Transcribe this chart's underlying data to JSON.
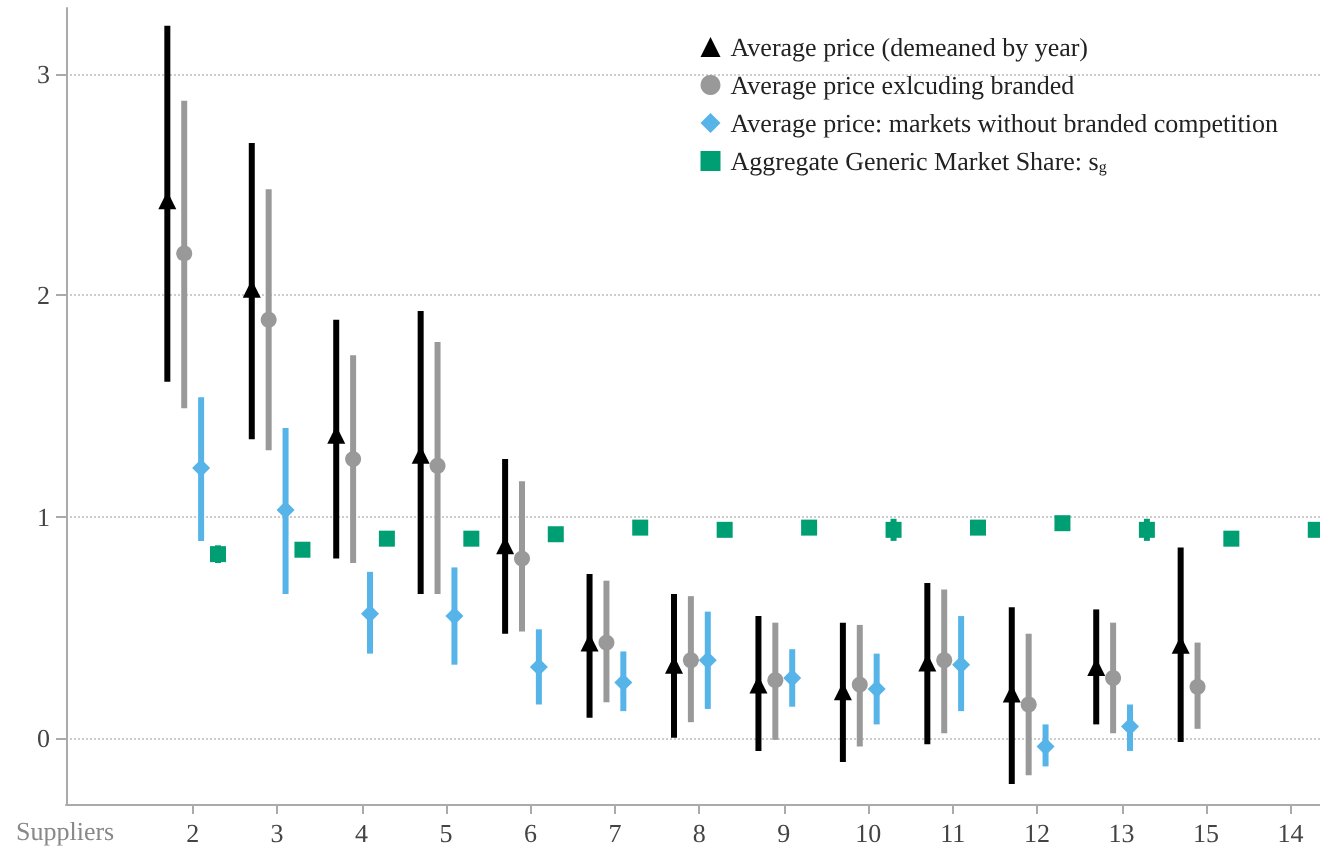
{
  "chart_data": {
    "type": "scatter",
    "xlabel": "Suppliers",
    "categories": [
      "2",
      "3",
      "4",
      "5",
      "6",
      "7",
      "8",
      "9",
      "10",
      "11",
      "12",
      "13",
      "15",
      "14"
    ],
    "ylim": [
      -0.3,
      3.3
    ],
    "yticks": [
      0,
      1,
      2,
      3
    ],
    "grid": "y",
    "legend": "top right",
    "series": [
      {
        "name": "Average price (demeaned by year)",
        "color": "#000000",
        "marker": "triangle",
        "x": [
          "2",
          "3",
          "4",
          "5",
          "6",
          "7",
          "8",
          "9",
          "10",
          "11",
          "12",
          "13",
          "15"
        ],
        "values": [
          2.43,
          2.03,
          1.37,
          1.28,
          0.87,
          0.43,
          0.33,
          0.24,
          0.21,
          0.34,
          0.2,
          0.32,
          0.42
        ],
        "errors": [
          [
            1.61,
            3.22
          ],
          [
            1.35,
            2.69
          ],
          [
            0.81,
            1.89
          ],
          [
            0.65,
            1.93
          ],
          [
            0.47,
            1.26
          ],
          [
            0.09,
            0.74
          ],
          [
            0.0,
            0.65
          ],
          [
            -0.06,
            0.55
          ],
          [
            -0.11,
            0.52
          ],
          [
            -0.03,
            0.7
          ],
          [
            -0.21,
            0.59
          ],
          [
            0.06,
            0.58
          ],
          [
            -0.02,
            0.86
          ]
        ]
      },
      {
        "name": "Average price exlcuding branded",
        "color": "#999999",
        "marker": "circle",
        "x": [
          "2",
          "3",
          "4",
          "5",
          "6",
          "7",
          "8",
          "9",
          "10",
          "11",
          "12",
          "13",
          "15"
        ],
        "values": [
          2.19,
          1.89,
          1.26,
          1.23,
          0.81,
          0.43,
          0.35,
          0.26,
          0.24,
          0.35,
          0.15,
          0.27,
          0.23
        ],
        "errors": [
          [
            1.49,
            2.88
          ],
          [
            1.3,
            2.48
          ],
          [
            0.79,
            1.73
          ],
          [
            0.65,
            1.79
          ],
          [
            0.48,
            1.16
          ],
          [
            0.16,
            0.71
          ],
          [
            0.07,
            0.64
          ],
          [
            -0.01,
            0.52
          ],
          [
            -0.04,
            0.51
          ],
          [
            0.02,
            0.67
          ],
          [
            -0.17,
            0.47
          ],
          [
            0.02,
            0.52
          ],
          [
            0.04,
            0.43
          ]
        ]
      },
      {
        "name": "Average price: markets without branded competition",
        "color": "#56b4e9",
        "marker": "diamond",
        "x": [
          "2",
          "3",
          "4",
          "5",
          "6",
          "7",
          "8",
          "9",
          "10",
          "11",
          "12",
          "13"
        ],
        "values": [
          1.22,
          1.03,
          0.56,
          0.55,
          0.32,
          0.25,
          0.35,
          0.27,
          0.22,
          0.33,
          -0.04,
          0.05
        ],
        "errors": [
          [
            0.89,
            1.54
          ],
          [
            0.65,
            1.4
          ],
          [
            0.38,
            0.75
          ],
          [
            0.33,
            0.77
          ],
          [
            0.15,
            0.49
          ],
          [
            0.12,
            0.39
          ],
          [
            0.13,
            0.57
          ],
          [
            0.14,
            0.4
          ],
          [
            0.06,
            0.38
          ],
          [
            0.12,
            0.55
          ],
          [
            -0.13,
            0.06
          ],
          [
            -0.06,
            0.15
          ]
        ]
      },
      {
        "name": "Aggregate Generic Market Share: s$_{g}$",
        "color": "#009e73",
        "marker": "square",
        "x": [
          "2",
          "3",
          "4",
          "5",
          "6",
          "7",
          "8",
          "9",
          "10",
          "11",
          "12",
          "13",
          "15",
          "14"
        ],
        "values": [
          0.83,
          0.85,
          0.9,
          0.9,
          0.92,
          0.95,
          0.94,
          0.95,
          0.94,
          0.95,
          0.97,
          0.94,
          0.9,
          0.94
        ],
        "errors": [
          [
            0.79,
            0.87
          ],
          [
            0.82,
            0.88
          ],
          [
            0.88,
            0.92
          ],
          [
            0.87,
            0.93
          ],
          [
            0.9,
            0.94
          ],
          null,
          null,
          null,
          [
            0.89,
            0.99
          ],
          null,
          null,
          [
            0.89,
            0.99
          ],
          null,
          [
            0.91,
            0.97
          ]
        ]
      }
    ]
  }
}
